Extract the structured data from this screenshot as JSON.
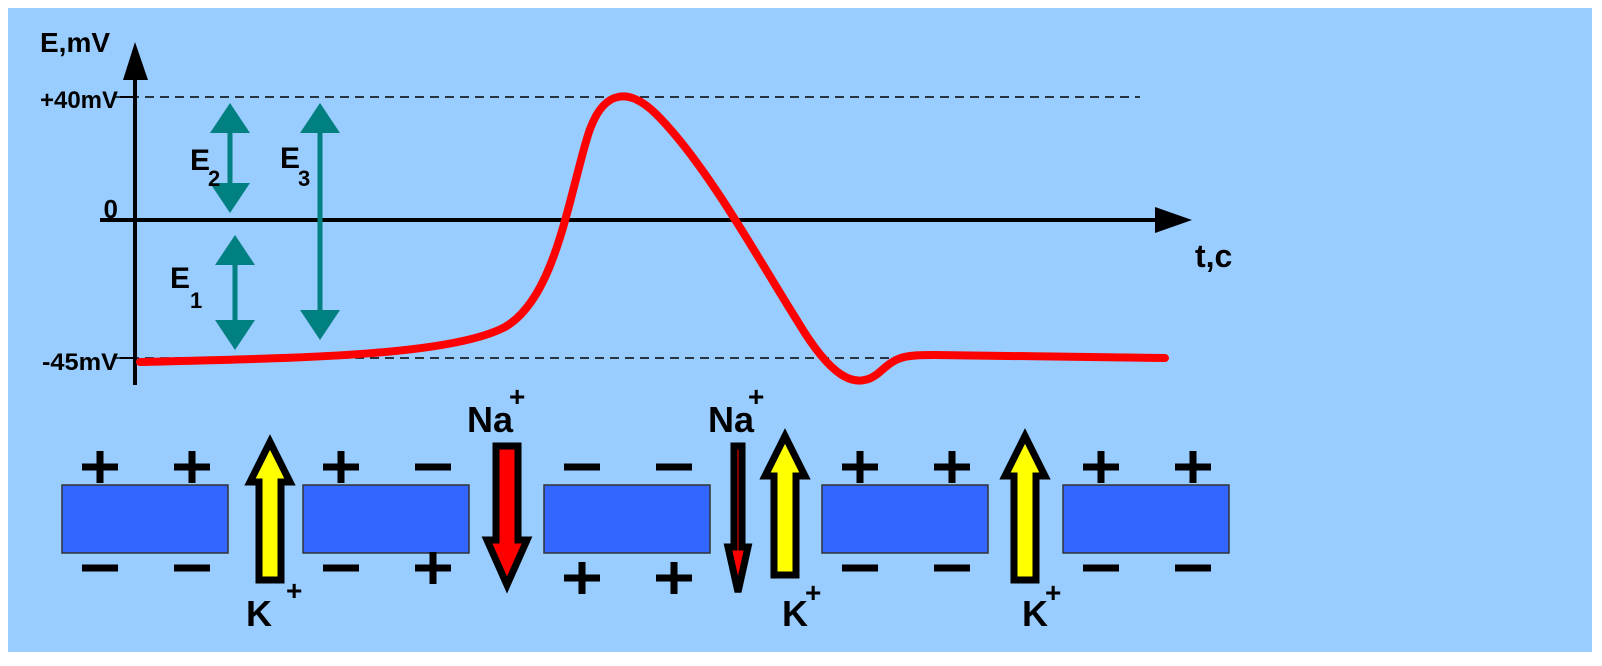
{
  "axes": {
    "y_label": "E,mV",
    "x_label": "t,c",
    "ticks": [
      "+40mV",
      "0",
      "-45mV"
    ]
  },
  "potentials": [
    {
      "symbol": "E",
      "subscript": "2"
    },
    {
      "symbol": "E",
      "subscript": "1"
    },
    {
      "symbol": "E",
      "subscript": "3"
    }
  ],
  "ions": [
    {
      "symbol": "K",
      "charge": "+"
    },
    {
      "symbol": "Na",
      "charge": "+"
    },
    {
      "symbol": "Na",
      "charge": "+"
    },
    {
      "symbol": "K",
      "charge": "+"
    },
    {
      "symbol": "K",
      "charge": "+"
    }
  ]
}
